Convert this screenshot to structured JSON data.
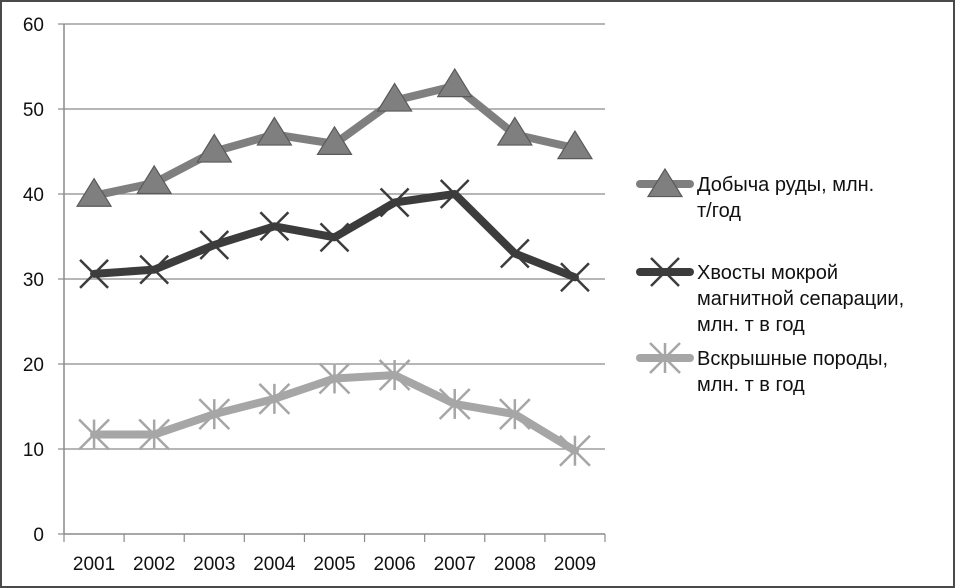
{
  "chart_data": {
    "type": "line",
    "title": "",
    "xlabel": "",
    "ylabel": "",
    "x": [
      "2001",
      "2002",
      "2003",
      "2004",
      "2005",
      "2006",
      "2007",
      "2008",
      "2009"
    ],
    "ylim": [
      0,
      60
    ],
    "yticks": [
      0,
      10,
      20,
      30,
      40,
      50,
      60
    ],
    "grid": "horizontal",
    "legend_position": "right",
    "series": [
      {
        "name": "Добыча руды, млн. т/год",
        "name_lines": [
          "Добыча руды, млн.",
          "т/год"
        ],
        "marker": "triangle",
        "color": "#7f7f7f",
        "values": [
          39.8,
          41.3,
          45.0,
          47.0,
          45.9,
          51.0,
          52.7,
          47.0,
          45.4
        ]
      },
      {
        "name": "Хвосты мокрой магнитной сепарации, млн. т в год",
        "name_lines": [
          "Хвосты мокрой",
          "магнитной сепарации,",
          "млн. т в год"
        ],
        "marker": "x",
        "color": "#3c3c3c",
        "values": [
          30.6,
          31.1,
          34.0,
          36.2,
          34.9,
          39.0,
          40.0,
          33.0,
          30.2
        ]
      },
      {
        "name": "Вскрышные породы, млн. т в год",
        "name_lines": [
          "Вскрышные породы,",
          "млн. т в год"
        ],
        "marker": "star",
        "color": "#a6a6a6",
        "values": [
          11.7,
          11.7,
          14.1,
          15.9,
          18.3,
          18.7,
          15.3,
          14.1,
          9.8
        ]
      }
    ]
  }
}
